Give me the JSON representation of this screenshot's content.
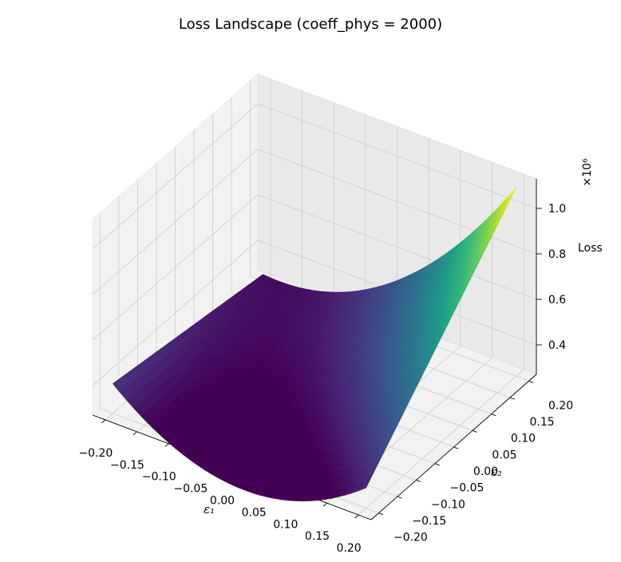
{
  "chart_data": {
    "type": "surface",
    "title": "Loss Landscape (coeff_phys = 2000)",
    "xlabel": "ε₁",
    "ylabel": "ε₂",
    "zlabel": "Loss",
    "z_offset_label": "×10⁶",
    "x_ticks": [
      "−0.20",
      "−0.15",
      "−0.10",
      "−0.05",
      "0.00",
      "0.05",
      "0.10",
      "0.15",
      "0.20"
    ],
    "y_ticks": [
      "−0.20",
      "−0.15",
      "−0.10",
      "−0.05",
      "0.00",
      "0.05",
      "0.10",
      "0.15",
      "0.20"
    ],
    "z_ticks": [
      "0.4",
      "0.6",
      "0.8",
      "1.0"
    ],
    "xlim": [
      -0.22,
      0.22
    ],
    "ylim": [
      -0.22,
      0.22
    ],
    "zlim": [
      0.27,
      1.13
    ],
    "colormap": "viridis",
    "corner_values": [
      {
        "x": -0.2,
        "y": -0.2,
        "z": 0.4
      },
      {
        "x": 0.2,
        "y": -0.2,
        "z": 0.36
      },
      {
        "x": -0.2,
        "y": 0.2,
        "z": 0.3
      },
      {
        "x": 0.2,
        "y": 0.2,
        "z": 1.1
      }
    ],
    "min_value": {
      "x": 0.0,
      "y": -0.05,
      "z": 0.27
    },
    "grid": true
  }
}
